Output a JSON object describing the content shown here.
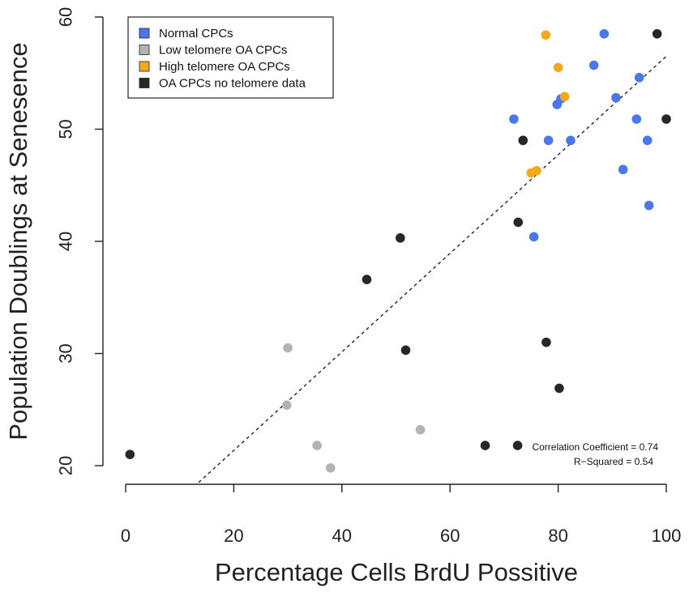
{
  "chart_data": {
    "type": "scatter",
    "xlabel": "Percentage Cells BrdU Possitive",
    "ylabel": "Population Doublings at Senesence",
    "xlim": [
      0,
      100
    ],
    "ylim": [
      20,
      60
    ],
    "x_ticks": [
      "0",
      "20",
      "40",
      "60",
      "80",
      "100"
    ],
    "y_ticks": [
      "20",
      "30",
      "40",
      "50",
      "60"
    ],
    "grid": false,
    "legend_position": "top-left",
    "series": [
      {
        "name": "Normal CPCs",
        "color": "#4a78e8",
        "points": [
          [
            71.8,
            50.9
          ],
          [
            75.5,
            40.4
          ],
          [
            78.2,
            49.0
          ],
          [
            79.8,
            52.2
          ],
          [
            80.5,
            52.7
          ],
          [
            82.3,
            49.0
          ],
          [
            86.6,
            55.7
          ],
          [
            88.5,
            58.5
          ],
          [
            90.7,
            52.8
          ],
          [
            92.0,
            46.4
          ],
          [
            94.5,
            50.9
          ],
          [
            95.0,
            54.6
          ],
          [
            96.5,
            49.0
          ],
          [
            96.8,
            43.2
          ]
        ]
      },
      {
        "name": "Low telomere OA CPCs",
        "color": "#b3b3b3",
        "points": [
          [
            29.8,
            25.4
          ],
          [
            30.0,
            30.5
          ],
          [
            35.4,
            21.8
          ],
          [
            37.9,
            19.8
          ],
          [
            54.5,
            23.2
          ]
        ]
      },
      {
        "name": "High telomere OA CPCs",
        "color": "#f5a81c",
        "points": [
          [
            75.0,
            46.1
          ],
          [
            76.0,
            46.3
          ],
          [
            77.7,
            58.4
          ],
          [
            80.0,
            55.5
          ],
          [
            81.2,
            52.9
          ]
        ]
      },
      {
        "name": "OA CPCs no telomere data",
        "color": "#2c2623",
        "points": [
          [
            0.8,
            21.0
          ],
          [
            44.6,
            36.6
          ],
          [
            50.8,
            40.3
          ],
          [
            51.8,
            30.3
          ],
          [
            66.5,
            21.8
          ],
          [
            72.5,
            21.8
          ],
          [
            72.6,
            41.7
          ],
          [
            73.5,
            49.0
          ],
          [
            77.8,
            31.0
          ],
          [
            80.2,
            26.9
          ],
          [
            98.3,
            58.5
          ],
          [
            100.0,
            50.9
          ]
        ]
      }
    ],
    "regression_line": {
      "style": "dashed",
      "color": "#222222",
      "from": [
        13.5,
        18.5
      ],
      "to": [
        100.0,
        56.5
      ]
    },
    "annotations": [
      "Correlation Coefficient = 0.74",
      "R−Squared = 0.54"
    ]
  }
}
